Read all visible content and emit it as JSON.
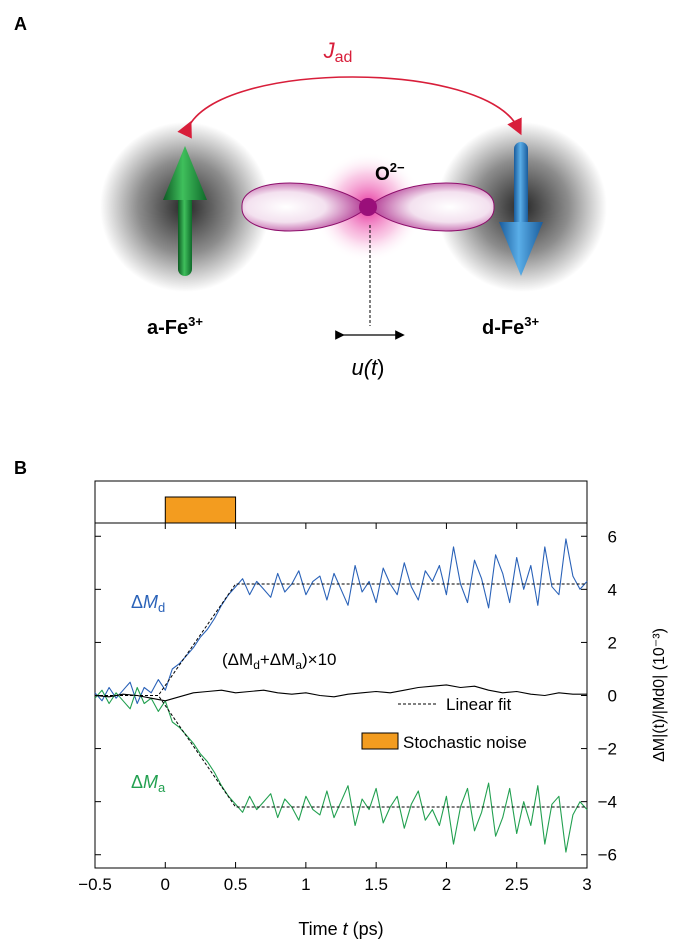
{
  "panel_a": {
    "letter": "A",
    "coupling_label_main": "J",
    "coupling_label_sub": "ad",
    "oxygen_label_main": "O",
    "oxygen_label_sup": "2−",
    "site_a_main": "a-Fe",
    "site_a_sup": "3+",
    "site_d_main": "d-Fe",
    "site_d_sup": "3+",
    "displacement_main": "u(",
    "displacement_var": "t",
    "displacement_end": ")",
    "colors": {
      "coupling": "#d81e3a",
      "a_spin": "#1f8a3a",
      "d_spin": "#2a7fc6",
      "orbital": "#b0148a"
    }
  },
  "panel_b": {
    "letter": "B",
    "curve_labels": {
      "d_delta": "Δ",
      "d_var": "M",
      "d_sub": "d",
      "a_delta": "Δ",
      "a_var": "M",
      "a_sub": "a",
      "sum_open": "(ΔM",
      "sum_sub1": "d",
      "sum_mid": "+ΔM",
      "sum_sub2": "a",
      "sum_close": ")×10"
    },
    "legend": {
      "fit": "Linear fit",
      "noise": "Stochastic noise"
    },
    "xlabel_main": "Time ",
    "xlabel_var": "t",
    "xlabel_unit": " (ps)",
    "ylabel": "ΔM|(t)/|Md0| (10⁻³)"
  },
  "chart_data": {
    "type": "line",
    "xlim": [
      -0.5,
      3
    ],
    "ylim": [
      -6.5,
      6.5
    ],
    "xticks": [
      -0.5,
      0,
      0.5,
      1,
      1.5,
      2,
      2.5,
      3
    ],
    "xtick_labels": [
      "−0.5",
      "0",
      "0.5",
      "1",
      "1.5",
      "2",
      "2.5",
      "3"
    ],
    "yticks": [
      -6,
      -4,
      -2,
      0,
      2,
      4,
      6
    ],
    "ytick_labels": [
      "−6",
      "−4",
      "−2",
      "0",
      "2",
      "4",
      "6"
    ],
    "pulse": {
      "start": 0,
      "end": 0.5,
      "color": "#f39c1f"
    },
    "series": [
      {
        "name": "ΔMd",
        "color": "#2a62b8",
        "x": [
          -0.5,
          -0.45,
          -0.4,
          -0.35,
          -0.3,
          -0.25,
          -0.2,
          -0.15,
          -0.1,
          -0.05,
          0,
          0.05,
          0.1,
          0.15,
          0.2,
          0.25,
          0.3,
          0.35,
          0.4,
          0.45,
          0.5,
          0.55,
          0.6,
          0.65,
          0.7,
          0.75,
          0.8,
          0.85,
          0.9,
          0.95,
          1,
          1.05,
          1.1,
          1.15,
          1.2,
          1.25,
          1.3,
          1.35,
          1.4,
          1.45,
          1.5,
          1.55,
          1.6,
          1.65,
          1.7,
          1.75,
          1.8,
          1.85,
          1.9,
          1.95,
          2,
          2.05,
          2.1,
          2.15,
          2.2,
          2.25,
          2.3,
          2.35,
          2.4,
          2.45,
          2.5,
          2.55,
          2.6,
          2.65,
          2.7,
          2.75,
          2.8,
          2.85,
          2.9,
          2.95,
          3
        ],
        "y": [
          0.1,
          -0.2,
          0.3,
          -0.1,
          0.2,
          0.5,
          -0.3,
          0.3,
          0.1,
          0.6,
          0.2,
          1.0,
          1.2,
          1.5,
          1.8,
          2.2,
          2.5,
          2.9,
          3.4,
          3.8,
          4.1,
          4.4,
          3.8,
          4.3,
          4.0,
          3.7,
          4.6,
          3.9,
          4.2,
          4.7,
          3.8,
          4.3,
          4.5,
          3.6,
          4.6,
          4.0,
          3.4,
          4.9,
          3.9,
          4.3,
          3.5,
          4.8,
          4.2,
          3.8,
          5.0,
          4.1,
          3.6,
          4.7,
          4.3,
          4.9,
          3.8,
          5.6,
          4.2,
          3.5,
          5.1,
          4.4,
          3.3,
          5.3,
          4.6,
          3.5,
          5.2,
          4.0,
          4.9,
          3.4,
          5.6,
          4.1,
          3.8,
          5.9,
          4.5,
          4.0,
          4.3
        ]
      },
      {
        "name": "ΔMa",
        "color": "#22a050",
        "x": [
          -0.5,
          -0.45,
          -0.4,
          -0.35,
          -0.3,
          -0.25,
          -0.2,
          -0.15,
          -0.1,
          -0.05,
          0,
          0.05,
          0.1,
          0.15,
          0.2,
          0.25,
          0.3,
          0.35,
          0.4,
          0.45,
          0.5,
          0.55,
          0.6,
          0.65,
          0.7,
          0.75,
          0.8,
          0.85,
          0.9,
          0.95,
          1,
          1.05,
          1.1,
          1.15,
          1.2,
          1.25,
          1.3,
          1.35,
          1.4,
          1.45,
          1.5,
          1.55,
          1.6,
          1.65,
          1.7,
          1.75,
          1.8,
          1.85,
          1.9,
          1.95,
          2,
          2.05,
          2.1,
          2.15,
          2.2,
          2.25,
          2.3,
          2.35,
          2.4,
          2.45,
          2.5,
          2.55,
          2.6,
          2.65,
          2.7,
          2.75,
          2.8,
          2.85,
          2.9,
          2.95,
          3
        ],
        "y": [
          -0.1,
          0.2,
          -0.3,
          0.1,
          -0.2,
          -0.5,
          0.3,
          -0.3,
          -0.1,
          -0.6,
          -0.2,
          -1.0,
          -1.2,
          -1.5,
          -1.8,
          -2.2,
          -2.5,
          -2.9,
          -3.4,
          -3.8,
          -4.1,
          -4.4,
          -3.8,
          -4.3,
          -4.0,
          -3.7,
          -4.6,
          -3.9,
          -4.2,
          -4.7,
          -3.8,
          -4.3,
          -4.5,
          -3.6,
          -4.6,
          -4.0,
          -3.4,
          -4.9,
          -3.9,
          -4.3,
          -3.5,
          -4.8,
          -4.2,
          -3.8,
          -5.0,
          -4.1,
          -3.6,
          -4.7,
          -4.3,
          -4.9,
          -3.8,
          -5.6,
          -4.2,
          -3.5,
          -5.1,
          -4.4,
          -3.3,
          -5.3,
          -4.6,
          -3.5,
          -5.2,
          -4.0,
          -4.9,
          -3.4,
          -5.6,
          -4.1,
          -3.8,
          -5.9,
          -4.5,
          -4.0,
          -4.3
        ]
      },
      {
        "name": "(ΔMd+ΔMa)×10",
        "color": "#000000",
        "x": [
          -0.5,
          -0.4,
          -0.3,
          -0.2,
          -0.1,
          0,
          0.1,
          0.2,
          0.3,
          0.4,
          0.5,
          0.6,
          0.7,
          0.8,
          0.9,
          1,
          1.1,
          1.2,
          1.3,
          1.4,
          1.5,
          1.6,
          1.7,
          1.8,
          1.9,
          2,
          2.1,
          2.2,
          2.3,
          2.4,
          2.5,
          2.6,
          2.7,
          2.8,
          2.9,
          3
        ],
        "y": [
          0,
          -0.05,
          0.05,
          0,
          -0.1,
          -0.2,
          -0.05,
          0.1,
          0.15,
          0.2,
          0.1,
          0.15,
          0.2,
          0.1,
          0.05,
          0.1,
          0,
          -0.05,
          0.05,
          0.1,
          0.15,
          0.1,
          0.2,
          0.3,
          0.35,
          0.4,
          0.3,
          0.35,
          0.2,
          0.1,
          0.15,
          0.05,
          0,
          0.1,
          0.05,
          0.05
        ]
      },
      {
        "name": "Linear fit (d)",
        "color": "#000000",
        "dash": true,
        "x": [
          -0.5,
          -0.05,
          0.5,
          3
        ],
        "y": [
          0,
          0,
          4.2,
          4.2
        ]
      },
      {
        "name": "Linear fit (a)",
        "color": "#000000",
        "dash": true,
        "x": [
          -0.5,
          -0.05,
          0.5,
          3
        ],
        "y": [
          0,
          0,
          -4.2,
          -4.2
        ]
      }
    ]
  }
}
